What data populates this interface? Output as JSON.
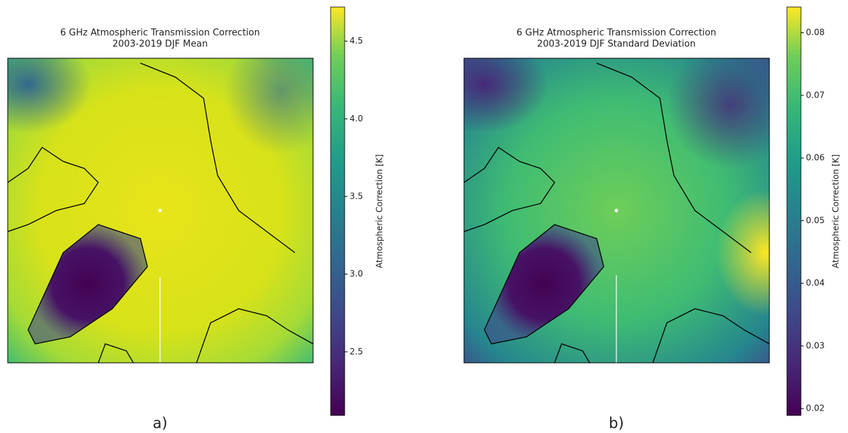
{
  "panels": [
    {
      "title": [
        "6 GHz Atmospheric Transmission Correction",
        "2003-2019 DJF Mean"
      ],
      "label": "a)",
      "colorbar": {
        "label": "Atmospheric Correction [K]",
        "lim": [
          2.09,
          4.72
        ],
        "ticks": [
          2.5,
          {
            "value": 3,
            "label": "3.0"
          },
          3.5,
          {
            "value": 4,
            "label": "4.0"
          },
          4.5
        ]
      }
    },
    {
      "title": [
        "6 GHz Atmospheric Transmission Correction",
        "2003-2019 DJF Standard Deviation"
      ],
      "label": "b)",
      "colorbar": {
        "label": "Atmospheric Correction [K]",
        "lim": [
          0.0189,
          0.0841
        ],
        "ticks": [
          0.02,
          0.03,
          0.04,
          0.05,
          0.06,
          0.07,
          0.08
        ]
      }
    }
  ]
}
